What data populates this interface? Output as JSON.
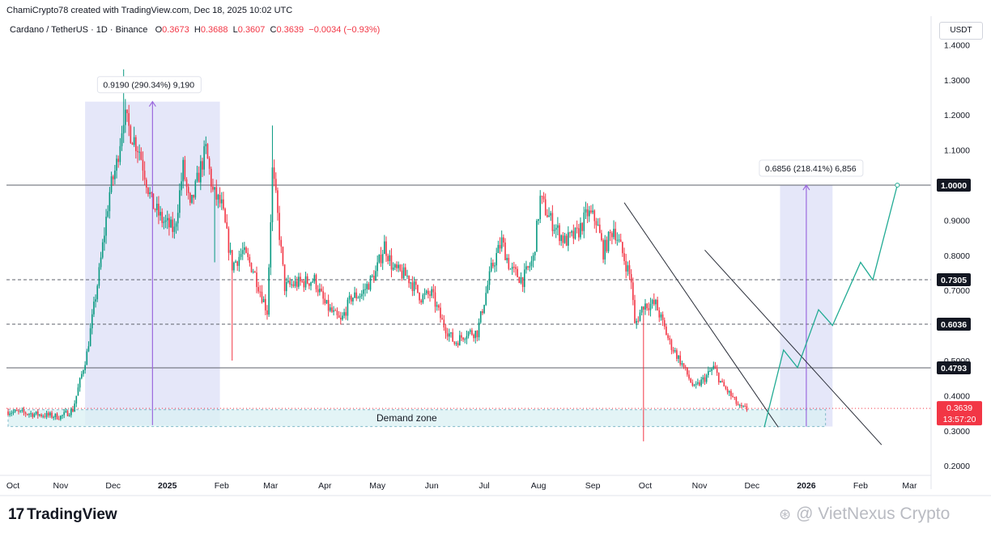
{
  "header": {
    "author_line": "ChamiCrypto78 created with TradingView.com, Dec 18, 2025 10:02 UTC"
  },
  "legend": {
    "symbol": "Cardano / TetherUS · 1D · Binance",
    "o_label": "O",
    "o_value": "0.3673",
    "h_label": "H",
    "h_value": "0.3688",
    "l_label": "L",
    "l_value": "0.3607",
    "c_label": "C",
    "c_value": "0.3639",
    "change": "−0.0034 (−0.93%)"
  },
  "currency": "USDT",
  "colors": {
    "up": "#089981",
    "down": "#f23645",
    "highlight": "#e0e3f8",
    "measure": "#9c6ade",
    "zone": "#d9f0f3",
    "path": "#22ab94",
    "channel": "#2a2e39"
  },
  "chart_data": {
    "type": "candlestick",
    "title": "Cardano / TetherUS · 1D · Binance",
    "y_axis": {
      "ticks": [
        "1.4000",
        "1.3000",
        "1.2000",
        "1.1000",
        "1.0000",
        "0.9000",
        "0.8000",
        "0.7000",
        "0.6000",
        "0.5000",
        "0.4000",
        "0.3000",
        "0.2000"
      ],
      "tick_values": [
        1.4,
        1.3,
        1.2,
        1.1,
        1.0,
        0.9,
        0.8,
        0.7,
        0.6,
        0.5,
        0.4,
        0.3,
        0.2
      ],
      "range": [
        0.16,
        1.44
      ]
    },
    "x_axis": {
      "labels": [
        "Oct",
        "Nov",
        "Dec",
        "2025",
        "Feb",
        "Mar",
        "Apr",
        "May",
        "Jun",
        "Jul",
        "Aug",
        "Sep",
        "Oct",
        "Nov",
        "Dec",
        "2026",
        "Feb",
        "Mar"
      ],
      "label_days": [
        -1,
        30,
        60,
        91,
        122,
        150,
        181,
        211,
        242,
        272,
        303,
        334,
        364,
        395,
        425,
        456,
        487,
        515
      ],
      "bold": [
        "2025",
        "2026"
      ],
      "day_origin": "2024-10-01"
    },
    "price_path": [
      [
        0,
        0.355
      ],
      [
        30,
        0.34
      ],
      [
        37,
        0.36
      ],
      [
        45,
        0.52
      ],
      [
        52,
        0.75
      ],
      [
        58,
        0.98
      ],
      [
        62,
        1.06
      ],
      [
        66,
        1.2
      ],
      [
        70,
        1.15
      ],
      [
        75,
        1.1
      ],
      [
        82,
        0.95
      ],
      [
        88,
        0.9
      ],
      [
        95,
        0.87
      ],
      [
        100,
        1.05
      ],
      [
        104,
        0.93
      ],
      [
        110,
        1.05
      ],
      [
        113,
        1.1
      ],
      [
        117,
        0.98
      ],
      [
        122,
        0.94
      ],
      [
        128,
        0.77
      ],
      [
        134,
        0.81
      ],
      [
        140,
        0.76
      ],
      [
        148,
        0.64
      ],
      [
        151,
        1.04
      ],
      [
        153,
        0.96
      ],
      [
        158,
        0.71
      ],
      [
        165,
        0.72
      ],
      [
        175,
        0.73
      ],
      [
        181,
        0.66
      ],
      [
        190,
        0.61
      ],
      [
        196,
        0.68
      ],
      [
        202,
        0.69
      ],
      [
        210,
        0.75
      ],
      [
        215,
        0.83
      ],
      [
        220,
        0.76
      ],
      [
        228,
        0.74
      ],
      [
        236,
        0.68
      ],
      [
        242,
        0.69
      ],
      [
        248,
        0.61
      ],
      [
        255,
        0.55
      ],
      [
        262,
        0.58
      ],
      [
        268,
        0.58
      ],
      [
        276,
        0.76
      ],
      [
        282,
        0.84
      ],
      [
        287,
        0.76
      ],
      [
        294,
        0.73
      ],
      [
        300,
        0.79
      ],
      [
        304,
        0.96
      ],
      [
        310,
        0.9
      ],
      [
        318,
        0.84
      ],
      [
        325,
        0.86
      ],
      [
        331,
        0.92
      ],
      [
        336,
        0.9
      ],
      [
        340,
        0.81
      ],
      [
        346,
        0.88
      ],
      [
        352,
        0.79
      ],
      [
        356,
        0.73
      ],
      [
        358,
        0.6
      ],
      [
        363,
        0.66
      ],
      [
        370,
        0.66
      ],
      [
        378,
        0.55
      ],
      [
        385,
        0.49
      ],
      [
        392,
        0.42
      ],
      [
        398,
        0.45
      ],
      [
        403,
        0.48
      ],
      [
        408,
        0.43
      ],
      [
        413,
        0.4
      ],
      [
        418,
        0.365
      ],
      [
        422,
        0.362
      ]
    ],
    "last_price": "0.3639",
    "last_value": 0.3639,
    "countdown": "13:57:20",
    "horizontal_levels": [
      {
        "label": "1.0000",
        "value": 1.0,
        "style": "solid"
      },
      {
        "label": "0.7305",
        "value": 0.7305,
        "style": "dashed"
      },
      {
        "label": "0.6036",
        "value": 0.6036,
        "style": "dashed"
      },
      {
        "label": "0.4793",
        "value": 0.4793,
        "style": "solid"
      }
    ],
    "demand_zone": {
      "label": "Demand zone",
      "low": 0.312,
      "high": 0.36,
      "start_day": 0,
      "end_day": 467
    },
    "measure_past": {
      "text": "0.9190 (290.34%) 9,190",
      "low": 0.316,
      "high": 1.238,
      "start_day": 44,
      "end_day": 121
    },
    "measure_future": {
      "text": "0.6856 (218.41%) 6,856",
      "low": 0.312,
      "high": 1.0,
      "start_day": 441,
      "end_day": 471
    },
    "channel": {
      "upper": [
        [
          352,
          0.95
        ],
        [
          440,
          0.31
        ]
      ],
      "lower": [
        [
          398,
          0.815
        ],
        [
          499,
          0.26
        ]
      ]
    },
    "projection": [
      [
        432,
        0.31
      ],
      [
        443,
        0.53
      ],
      [
        451,
        0.48
      ],
      [
        463,
        0.645
      ],
      [
        471,
        0.6
      ],
      [
        487,
        0.78
      ],
      [
        494,
        0.73
      ],
      [
        508,
        1.0
      ]
    ]
  },
  "branding": {
    "logo_mark": "17",
    "logo_text": "TradingView",
    "watermark_glyph": "⊛",
    "watermark_text": "@ VietNexus Crypto"
  }
}
